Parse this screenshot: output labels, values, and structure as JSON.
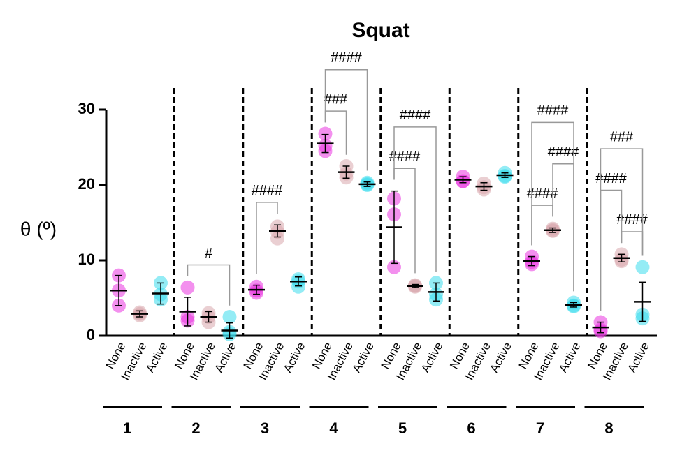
{
  "chart_data": {
    "type": "dot",
    "title": "Squat",
    "y_label": "θ (º)",
    "ylim": [
      0,
      30
    ],
    "yticks": [
      0,
      10,
      20,
      30
    ],
    "colors": [
      "#e935e0",
      "#d9a8ad",
      "#3ddcec"
    ],
    "groups": [
      {
        "label": "1",
        "categories": [
          "None",
          "Inactive",
          "Active"
        ],
        "points": [
          [
            8,
            6,
            4
          ],
          [
            3.1,
            2.7,
            2.9
          ],
          [
            7,
            5.5,
            4.8
          ]
        ],
        "means": [
          6,
          2.9,
          5.6
        ],
        "errors": [
          2,
          0.4,
          1.4
        ],
        "comparisons": []
      },
      {
        "label": "2",
        "categories": [
          "None",
          "Inactive",
          "Active"
        ],
        "points": [
          [
            6.4,
            2.5,
            2
          ],
          [
            3,
            2.5,
            1.8
          ],
          [
            2.5,
            0.5,
            0.2
          ]
        ],
        "means": [
          3.2,
          2.5,
          0.7
        ],
        "errors": [
          1.9,
          0.7,
          1
        ],
        "comparisons": [
          {
            "from": 0,
            "to": 2,
            "label": "#"
          }
        ]
      },
      {
        "label": "3",
        "categories": [
          "None",
          "Inactive",
          "Active"
        ],
        "points": [
          [
            6.5,
            6,
            5.7
          ],
          [
            14.5,
            13.8,
            12.9
          ],
          [
            7.5,
            7.2,
            6.5
          ]
        ],
        "means": [
          6.1,
          13.9,
          7.2
        ],
        "errors": [
          0.6,
          0.8,
          0.6
        ],
        "comparisons": [
          {
            "from": 0,
            "to": 1,
            "label": "####"
          }
        ]
      },
      {
        "label": "4",
        "categories": [
          "None",
          "Inactive",
          "Active"
        ],
        "points": [
          [
            26.8,
            25.2,
            24.5
          ],
          [
            22.5,
            21.5,
            21
          ],
          [
            20.3,
            20,
            20.1
          ]
        ],
        "means": [
          25.5,
          21.7,
          20.1
        ],
        "errors": [
          1.2,
          0.8,
          0.3
        ],
        "comparisons": [
          {
            "from": 0,
            "to": 1,
            "label": "###"
          },
          {
            "from": 0,
            "to": 2,
            "label": "####"
          }
        ]
      },
      {
        "label": "5",
        "categories": [
          "None",
          "Inactive",
          "Active"
        ],
        "points": [
          [
            18.2,
            16.1,
            9.1
          ],
          [
            6.7,
            6.5,
            6.6
          ],
          [
            7,
            5.5,
            4.8
          ]
        ],
        "means": [
          14.4,
          6.6,
          5.8
        ],
        "errors": [
          4.8,
          0.2,
          1.2
        ],
        "comparisons": [
          {
            "from": 0,
            "to": 1,
            "label": "####"
          },
          {
            "from": 0,
            "to": 2,
            "label": "####"
          }
        ]
      },
      {
        "label": "6",
        "categories": [
          "None",
          "Inactive",
          "Active"
        ],
        "points": [
          [
            21.1,
            20.5,
            20.5
          ],
          [
            20.2,
            19.7,
            19.4
          ],
          [
            21.6,
            21.2,
            21.1
          ]
        ],
        "means": [
          20.7,
          19.8,
          21.3
        ],
        "errors": [
          0.4,
          0.5,
          0.3
        ],
        "comparisons": []
      },
      {
        "label": "7",
        "categories": [
          "None",
          "Inactive",
          "Active"
        ],
        "points": [
          [
            10.5,
            9.8,
            9.5
          ],
          [
            14.2,
            13.9,
            14
          ],
          [
            4.4,
            4,
            3.9
          ]
        ],
        "means": [
          9.9,
          14,
          4.1
        ],
        "errors": [
          0.6,
          0.3,
          0.3
        ],
        "comparisons": [
          {
            "from": 0,
            "to": 1,
            "label": "####"
          },
          {
            "from": 1,
            "to": 2,
            "label": "####"
          },
          {
            "from": 0,
            "to": 2,
            "label": "####"
          }
        ]
      },
      {
        "label": "8",
        "categories": [
          "None",
          "Inactive",
          "Active"
        ],
        "points": [
          [
            1.8,
            0.8,
            0.6
          ],
          [
            10.8,
            10.1,
            9.9
          ],
          [
            9.1,
            2.8,
            2.3
          ]
        ],
        "means": [
          1.1,
          10.3,
          4.5
        ],
        "errors": [
          0.7,
          0.5,
          2.6
        ],
        "comparisons": [
          {
            "from": 1,
            "to": 2,
            "label": "####"
          },
          {
            "from": 0,
            "to": 1,
            "label": "####"
          },
          {
            "from": 0,
            "to": 2,
            "label": "###"
          }
        ]
      }
    ]
  }
}
